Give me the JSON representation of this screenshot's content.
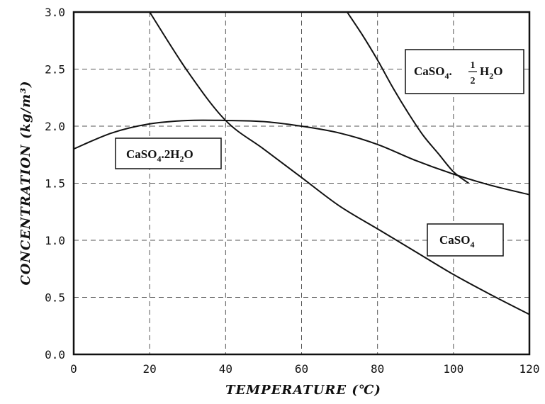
{
  "chart_data": {
    "type": "line",
    "xlabel": "TEMPERATURE (℃)",
    "ylabel": "CONCENTRATION (kg/m³)",
    "xlim": [
      0,
      120
    ],
    "ylim": [
      0.0,
      3.0
    ],
    "x_ticks": [
      "0",
      "20",
      "40",
      "60",
      "80",
      "100",
      "120"
    ],
    "y_ticks": [
      "0.0",
      "0.5",
      "1.0",
      "1.5",
      "2.0",
      "2.5",
      "3.0"
    ],
    "grid": true,
    "series": [
      {
        "name": "CaSO4.2H2O",
        "x": [
          0,
          10,
          20,
          30,
          40,
          50,
          60,
          70,
          80,
          90,
          100,
          110,
          120
        ],
        "y": [
          1.8,
          1.94,
          2.02,
          2.05,
          2.05,
          2.04,
          2.0,
          1.94,
          1.84,
          1.7,
          1.58,
          1.48,
          1.4
        ]
      },
      {
        "name": "CaSO4",
        "x": [
          20,
          30,
          40,
          50,
          60,
          70,
          80,
          90,
          100,
          110,
          120
        ],
        "y": [
          3.0,
          2.48,
          2.05,
          1.8,
          1.55,
          1.3,
          1.1,
          0.9,
          0.7,
          0.52,
          0.35
        ]
      },
      {
        "name": "CaSO4·½H2O",
        "x": [
          72,
          76,
          80,
          84,
          88,
          92,
          96,
          100,
          104
        ],
        "y": [
          3.0,
          2.8,
          2.58,
          2.34,
          2.12,
          1.92,
          1.76,
          1.6,
          1.5
        ]
      }
    ]
  },
  "labels": {
    "dihydrate": {
      "main": "CaSO",
      "sub4": "4",
      "mid": ".2H",
      "sub2": "2",
      "end": "O"
    },
    "anhydrite": {
      "main": "CaSO",
      "sub4": "4"
    },
    "hemihydrate": {
      "main": "CaSO",
      "sub4": "4",
      "dot": ".",
      "num": "1",
      "den": "2",
      "h": "H",
      "sub2": "2",
      "end": "O"
    }
  }
}
